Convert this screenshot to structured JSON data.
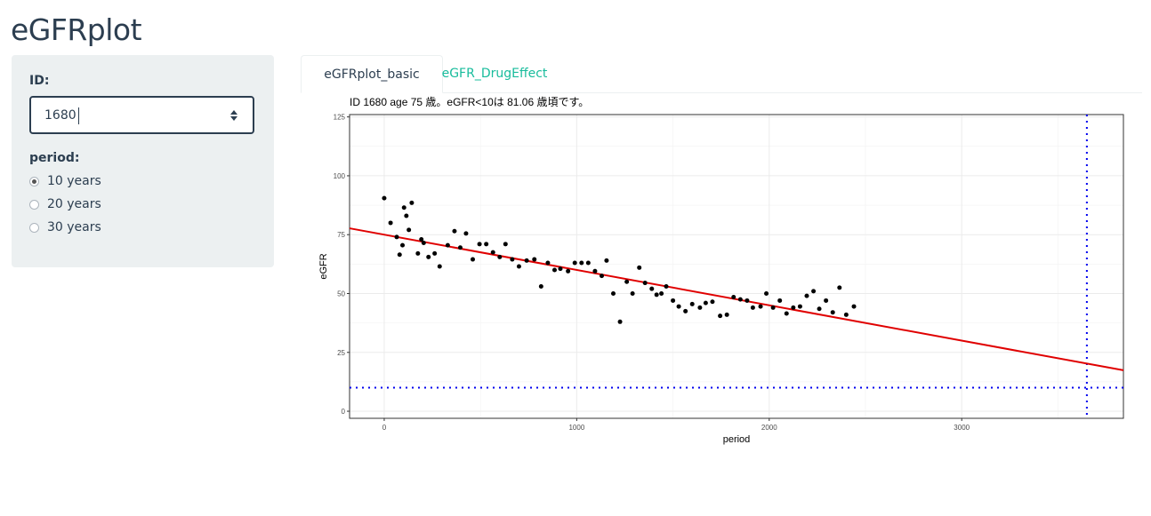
{
  "app": {
    "title": "eGFRplot"
  },
  "sidebar": {
    "id_label": "ID:",
    "id_value": "1680",
    "period_label": "period:",
    "period_options": [
      "10 years",
      "20 years",
      "30 years"
    ],
    "period_selected": "10 years"
  },
  "tabs": [
    {
      "label": "eGFRplot_basic",
      "active": true
    },
    {
      "label": "eGFR_DrugEffect",
      "active": false
    }
  ],
  "colors": {
    "accent": "#18bc9c",
    "text": "#2c3e50",
    "well": "#ecf0f1",
    "fit_line": "#e00000",
    "ref_line": "#0000ee"
  },
  "chart_data": {
    "type": "scatter",
    "title": "ID 1680 age 75 歳。eGFR<10は 81.06 歳頃です。",
    "xlabel": "period",
    "ylabel": "eGFR",
    "xlim": [
      -180,
      3840
    ],
    "ylim": [
      -3,
      126
    ],
    "x_ticks": [
      0,
      1000,
      2000,
      3000
    ],
    "y_ticks": [
      0,
      25,
      50,
      75,
      100,
      125
    ],
    "grid": true,
    "series": [
      {
        "points": [
          [
            0,
            90.5
          ],
          [
            33,
            80
          ],
          [
            65,
            74
          ],
          [
            80,
            66.5
          ],
          [
            95,
            70.5
          ],
          [
            103,
            86.5
          ],
          [
            115,
            83
          ],
          [
            128,
            77
          ],
          [
            143,
            88.5
          ],
          [
            175,
            67
          ],
          [
            193,
            73
          ],
          [
            205,
            71.5
          ],
          [
            230,
            65.5
          ],
          [
            262,
            67
          ],
          [
            288,
            61.5
          ],
          [
            330,
            70.5
          ],
          [
            365,
            76.5
          ],
          [
            395,
            69.5
          ],
          [
            425,
            75.5
          ],
          [
            460,
            64.5
          ],
          [
            495,
            71
          ],
          [
            530,
            71
          ],
          [
            565,
            67.5
          ],
          [
            600,
            65.5
          ],
          [
            630,
            71
          ],
          [
            665,
            64.5
          ],
          [
            700,
            61.5
          ],
          [
            740,
            64
          ],
          [
            780,
            64.5
          ],
          [
            815,
            53
          ],
          [
            850,
            63
          ],
          [
            885,
            60
          ],
          [
            915,
            60.5
          ],
          [
            955,
            59.5
          ],
          [
            990,
            63
          ],
          [
            1025,
            63
          ],
          [
            1060,
            63
          ],
          [
            1095,
            59.5
          ],
          [
            1130,
            57.5
          ],
          [
            1155,
            64
          ],
          [
            1190,
            50
          ],
          [
            1225,
            38
          ],
          [
            1260,
            55
          ],
          [
            1290,
            50
          ],
          [
            1325,
            61
          ],
          [
            1355,
            54.5
          ],
          [
            1390,
            52
          ],
          [
            1415,
            49.5
          ],
          [
            1440,
            50
          ],
          [
            1465,
            53
          ],
          [
            1500,
            47
          ],
          [
            1530,
            44.5
          ],
          [
            1565,
            42.5
          ],
          [
            1600,
            45.5
          ],
          [
            1640,
            44
          ],
          [
            1670,
            46
          ],
          [
            1705,
            46.5
          ],
          [
            1745,
            40.5
          ],
          [
            1780,
            41
          ],
          [
            1815,
            48.5
          ],
          [
            1850,
            47.5
          ],
          [
            1885,
            47
          ],
          [
            1915,
            44
          ],
          [
            1955,
            44.5
          ],
          [
            1985,
            50
          ],
          [
            2020,
            44
          ],
          [
            2055,
            47
          ],
          [
            2090,
            41.5
          ],
          [
            2125,
            44
          ],
          [
            2160,
            44.5
          ],
          [
            2195,
            49
          ],
          [
            2230,
            51
          ],
          [
            2260,
            43.5
          ],
          [
            2295,
            47
          ],
          [
            2330,
            42
          ],
          [
            2365,
            52.5
          ],
          [
            2400,
            41
          ],
          [
            2440,
            44.5
          ]
        ]
      }
    ],
    "fit_line": {
      "intercept": 75,
      "slope": -0.015
    },
    "ref_hline": 10,
    "ref_vline": 3650
  }
}
